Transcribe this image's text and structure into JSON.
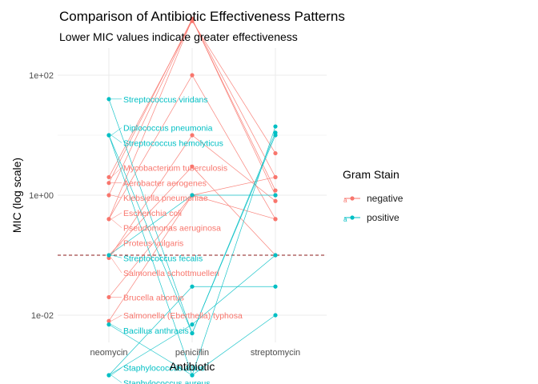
{
  "chart_data": {
    "type": "line",
    "title": "Comparison of Antibiotic Effectiveness Patterns",
    "subtitle": "Lower MIC values indicate greater effectiveness",
    "xlabel": "Antibiotic",
    "ylabel": "MIC (log scale)",
    "y_scale": "log10",
    "ylim": [
      0.001,
      1000
    ],
    "categories": [
      "neomycin",
      "penicillin",
      "streptomycin"
    ],
    "y_ticks": [
      0.01,
      1,
      100
    ],
    "y_tick_labels": [
      "1e-02",
      "1e+00",
      "1e+02"
    ],
    "reference_line": {
      "y": 0.1,
      "style": "dashed",
      "color": "#8b1a1a"
    },
    "legend": {
      "title": "Gram Stain",
      "position": "right",
      "entries": [
        {
          "label": "negative",
          "color": "#f8766d"
        },
        {
          "label": "positive",
          "color": "#00bfc4"
        }
      ]
    },
    "series": [
      {
        "name": "Aerobacter aerogenes",
        "group": "negative",
        "values": [
          1.6,
          870,
          1.0
        ]
      },
      {
        "name": "Brucella abortus",
        "group": "negative",
        "values": [
          0.02,
          1.0,
          2.0
        ]
      },
      {
        "name": "Escherichia coli",
        "group": "negative",
        "values": [
          0.4,
          100,
          0.4
        ]
      },
      {
        "name": "Klebsiella pneumoniae",
        "group": "negative",
        "values": [
          1.0,
          850,
          1.2
        ]
      },
      {
        "name": "Mycobacterium tuberculosis",
        "group": "negative",
        "values": [
          2.0,
          800,
          5.0
        ]
      },
      {
        "name": "Proteus vulgaris",
        "group": "negative",
        "values": [
          0.1,
          3.0,
          0.1
        ]
      },
      {
        "name": "Pseudomonas aeruginosa",
        "group": "negative",
        "values": [
          0.4,
          850,
          2.0
        ]
      },
      {
        "name": "Salmonella (Eberthella) typhosa",
        "group": "negative",
        "values": [
          0.008,
          1.0,
          0.4
        ]
      },
      {
        "name": "Salmonella schottmuelleri",
        "group": "negative",
        "values": [
          0.09,
          10,
          0.8
        ]
      },
      {
        "name": "Bacillus anthracis",
        "group": "positive",
        "values": [
          0.007,
          0.001,
          0.01
        ]
      },
      {
        "name": "Diplococcus pneumonia",
        "group": "positive",
        "values": [
          10,
          0.005,
          11
        ]
      },
      {
        "name": "Staphylococcus albus",
        "group": "positive",
        "values": [
          0.001,
          0.007,
          0.1
        ]
      },
      {
        "name": "Staphylococcus aureus",
        "group": "positive",
        "values": [
          0.001,
          0.03,
          0.03
        ]
      },
      {
        "name": "Streptococcus fecalis",
        "group": "positive",
        "values": [
          0.1,
          1.0,
          1.0
        ]
      },
      {
        "name": "Streptococcus hemolyticus",
        "group": "positive",
        "values": [
          10,
          0.001,
          14
        ]
      },
      {
        "name": "Streptococcus viridans",
        "group": "positive",
        "values": [
          40,
          0.005,
          10
        ]
      }
    ]
  }
}
